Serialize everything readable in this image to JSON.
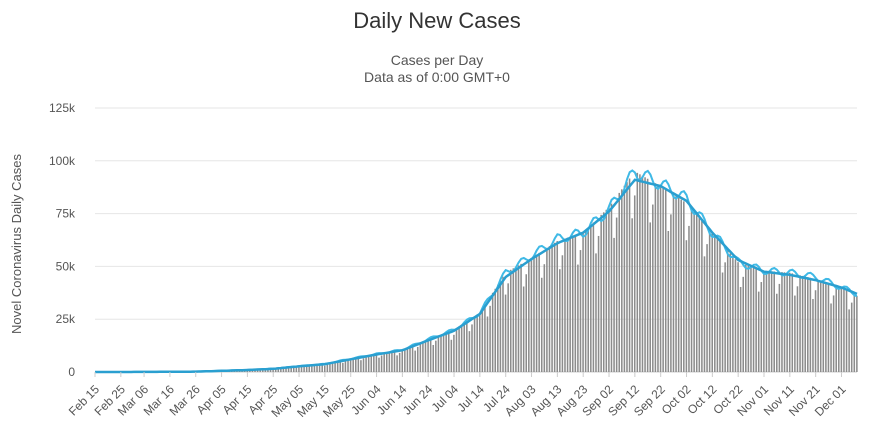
{
  "chart_data": {
    "type": "bar",
    "title": "Daily New Cases",
    "subtitle": [
      "Cases per Day",
      "Data as of 0:00 GMT+0"
    ],
    "ylabel": "Novel Coronavirus Daily Cases",
    "xlabel": "",
    "ylim": [
      0,
      125000
    ],
    "y_ticks": [
      0,
      25000,
      50000,
      75000,
      100000,
      125000
    ],
    "y_tick_labels": [
      "0",
      "25k",
      "50k",
      "75k",
      "100k",
      "125k"
    ],
    "x_tick_labels": [
      "Feb 15",
      "Feb 25",
      "Mar 06",
      "Mar 16",
      "Mar 26",
      "Apr 05",
      "Apr 15",
      "Apr 25",
      "May 05",
      "May 15",
      "May 25",
      "Jun 04",
      "Jun 14",
      "Jun 24",
      "Jul 04",
      "Jul 14",
      "Jul 24",
      "Aug 03",
      "Aug 13",
      "Aug 23",
      "Sep 02",
      "Sep 12",
      "Sep 22",
      "Oct 02",
      "Oct 12",
      "Oct 22",
      "Nov 01",
      "Nov 11",
      "Nov 21",
      "Dec 01"
    ],
    "x_range": [
      "Feb 15",
      "Dec 07"
    ],
    "grid": true,
    "legend": "none",
    "series": [
      {
        "kind": "bars",
        "color": "#8c8c8c",
        "sampled_values": [
          [
            "Feb 15",
            0
          ],
          [
            "Mar 06",
            30
          ],
          [
            "Mar 26",
            200
          ],
          [
            "Apr 05",
            600
          ],
          [
            "Apr 15",
            1000
          ],
          [
            "Apr 25",
            1600
          ],
          [
            "May 05",
            2800
          ],
          [
            "May 15",
            3800
          ],
          [
            "May 25",
            6300
          ],
          [
            "Jun 04",
            8500
          ],
          [
            "Jun 14",
            10500
          ],
          [
            "Jun 24",
            15500
          ],
          [
            "Jul 04",
            20000
          ],
          [
            "Jul 14",
            28000
          ],
          [
            "Jul 24",
            47000
          ],
          [
            "Aug 03",
            54000
          ],
          [
            "Aug 13",
            62000
          ],
          [
            "Aug 23",
            66000
          ],
          [
            "Sep 02",
            78000
          ],
          [
            "Sep 12",
            95000
          ],
          [
            "Sep 22",
            88000
          ],
          [
            "Oct 02",
            80000
          ],
          [
            "Oct 12",
            66000
          ],
          [
            "Oct 22",
            52000
          ],
          [
            "Nov 01",
            48000
          ],
          [
            "Nov 11",
            47000
          ],
          [
            "Nov 21",
            44000
          ],
          [
            "Dec 01",
            40000
          ],
          [
            "Dec 07",
            36000
          ]
        ]
      },
      {
        "kind": "line",
        "color": "#3fb9e6",
        "sampled_values": [
          [
            "Feb 15",
            0
          ],
          [
            "Mar 06",
            30
          ],
          [
            "Mar 26",
            200
          ],
          [
            "Apr 05",
            600
          ],
          [
            "Apr 15",
            1000
          ],
          [
            "Apr 25",
            1600
          ],
          [
            "May 05",
            2800
          ],
          [
            "May 15",
            3800
          ],
          [
            "May 25",
            6300
          ],
          [
            "Jun 04",
            8500
          ],
          [
            "Jun 14",
            10500
          ],
          [
            "Jun 24",
            15500
          ],
          [
            "Jul 04",
            20000
          ],
          [
            "Jul 14",
            28000
          ],
          [
            "Jul 24",
            47000
          ],
          [
            "Aug 03",
            55000
          ],
          [
            "Aug 13",
            63000
          ],
          [
            "Aug 23",
            66000
          ],
          [
            "Sep 02",
            77000
          ],
          [
            "Sep 12",
            95000
          ],
          [
            "Sep 22",
            89000
          ],
          [
            "Oct 02",
            82000
          ],
          [
            "Oct 12",
            66000
          ],
          [
            "Oct 22",
            52000
          ],
          [
            "Nov 01",
            48000
          ],
          [
            "Nov 11",
            47000
          ],
          [
            "Nov 21",
            45000
          ],
          [
            "Dec 01",
            40000
          ],
          [
            "Dec 07",
            37000
          ]
        ]
      },
      {
        "kind": "line",
        "color": "#2a9fd0",
        "sampled_values": [
          [
            "Feb 15",
            0
          ],
          [
            "Mar 06",
            30
          ],
          [
            "Mar 26",
            180
          ],
          [
            "Apr 05",
            550
          ],
          [
            "Apr 15",
            950
          ],
          [
            "Apr 25",
            1500
          ],
          [
            "May 05",
            2700
          ],
          [
            "May 15",
            3700
          ],
          [
            "May 25",
            6000
          ],
          [
            "Jun 04",
            8300
          ],
          [
            "Jun 14",
            10300
          ],
          [
            "Jun 24",
            15000
          ],
          [
            "Jul 04",
            19500
          ],
          [
            "Jul 14",
            27500
          ],
          [
            "Jul 24",
            45000
          ],
          [
            "Aug 03",
            53500
          ],
          [
            "Aug 13",
            61000
          ],
          [
            "Aug 23",
            66000
          ],
          [
            "Sep 02",
            76000
          ],
          [
            "Sep 12",
            91000
          ],
          [
            "Sep 22",
            88000
          ],
          [
            "Oct 02",
            81000
          ],
          [
            "Oct 12",
            66000
          ],
          [
            "Oct 22",
            53000
          ],
          [
            "Nov 01",
            47500
          ],
          [
            "Nov 11",
            46000
          ],
          [
            "Nov 21",
            43500
          ],
          [
            "Dec 01",
            40000
          ],
          [
            "Dec 07",
            37000
          ]
        ]
      }
    ]
  }
}
